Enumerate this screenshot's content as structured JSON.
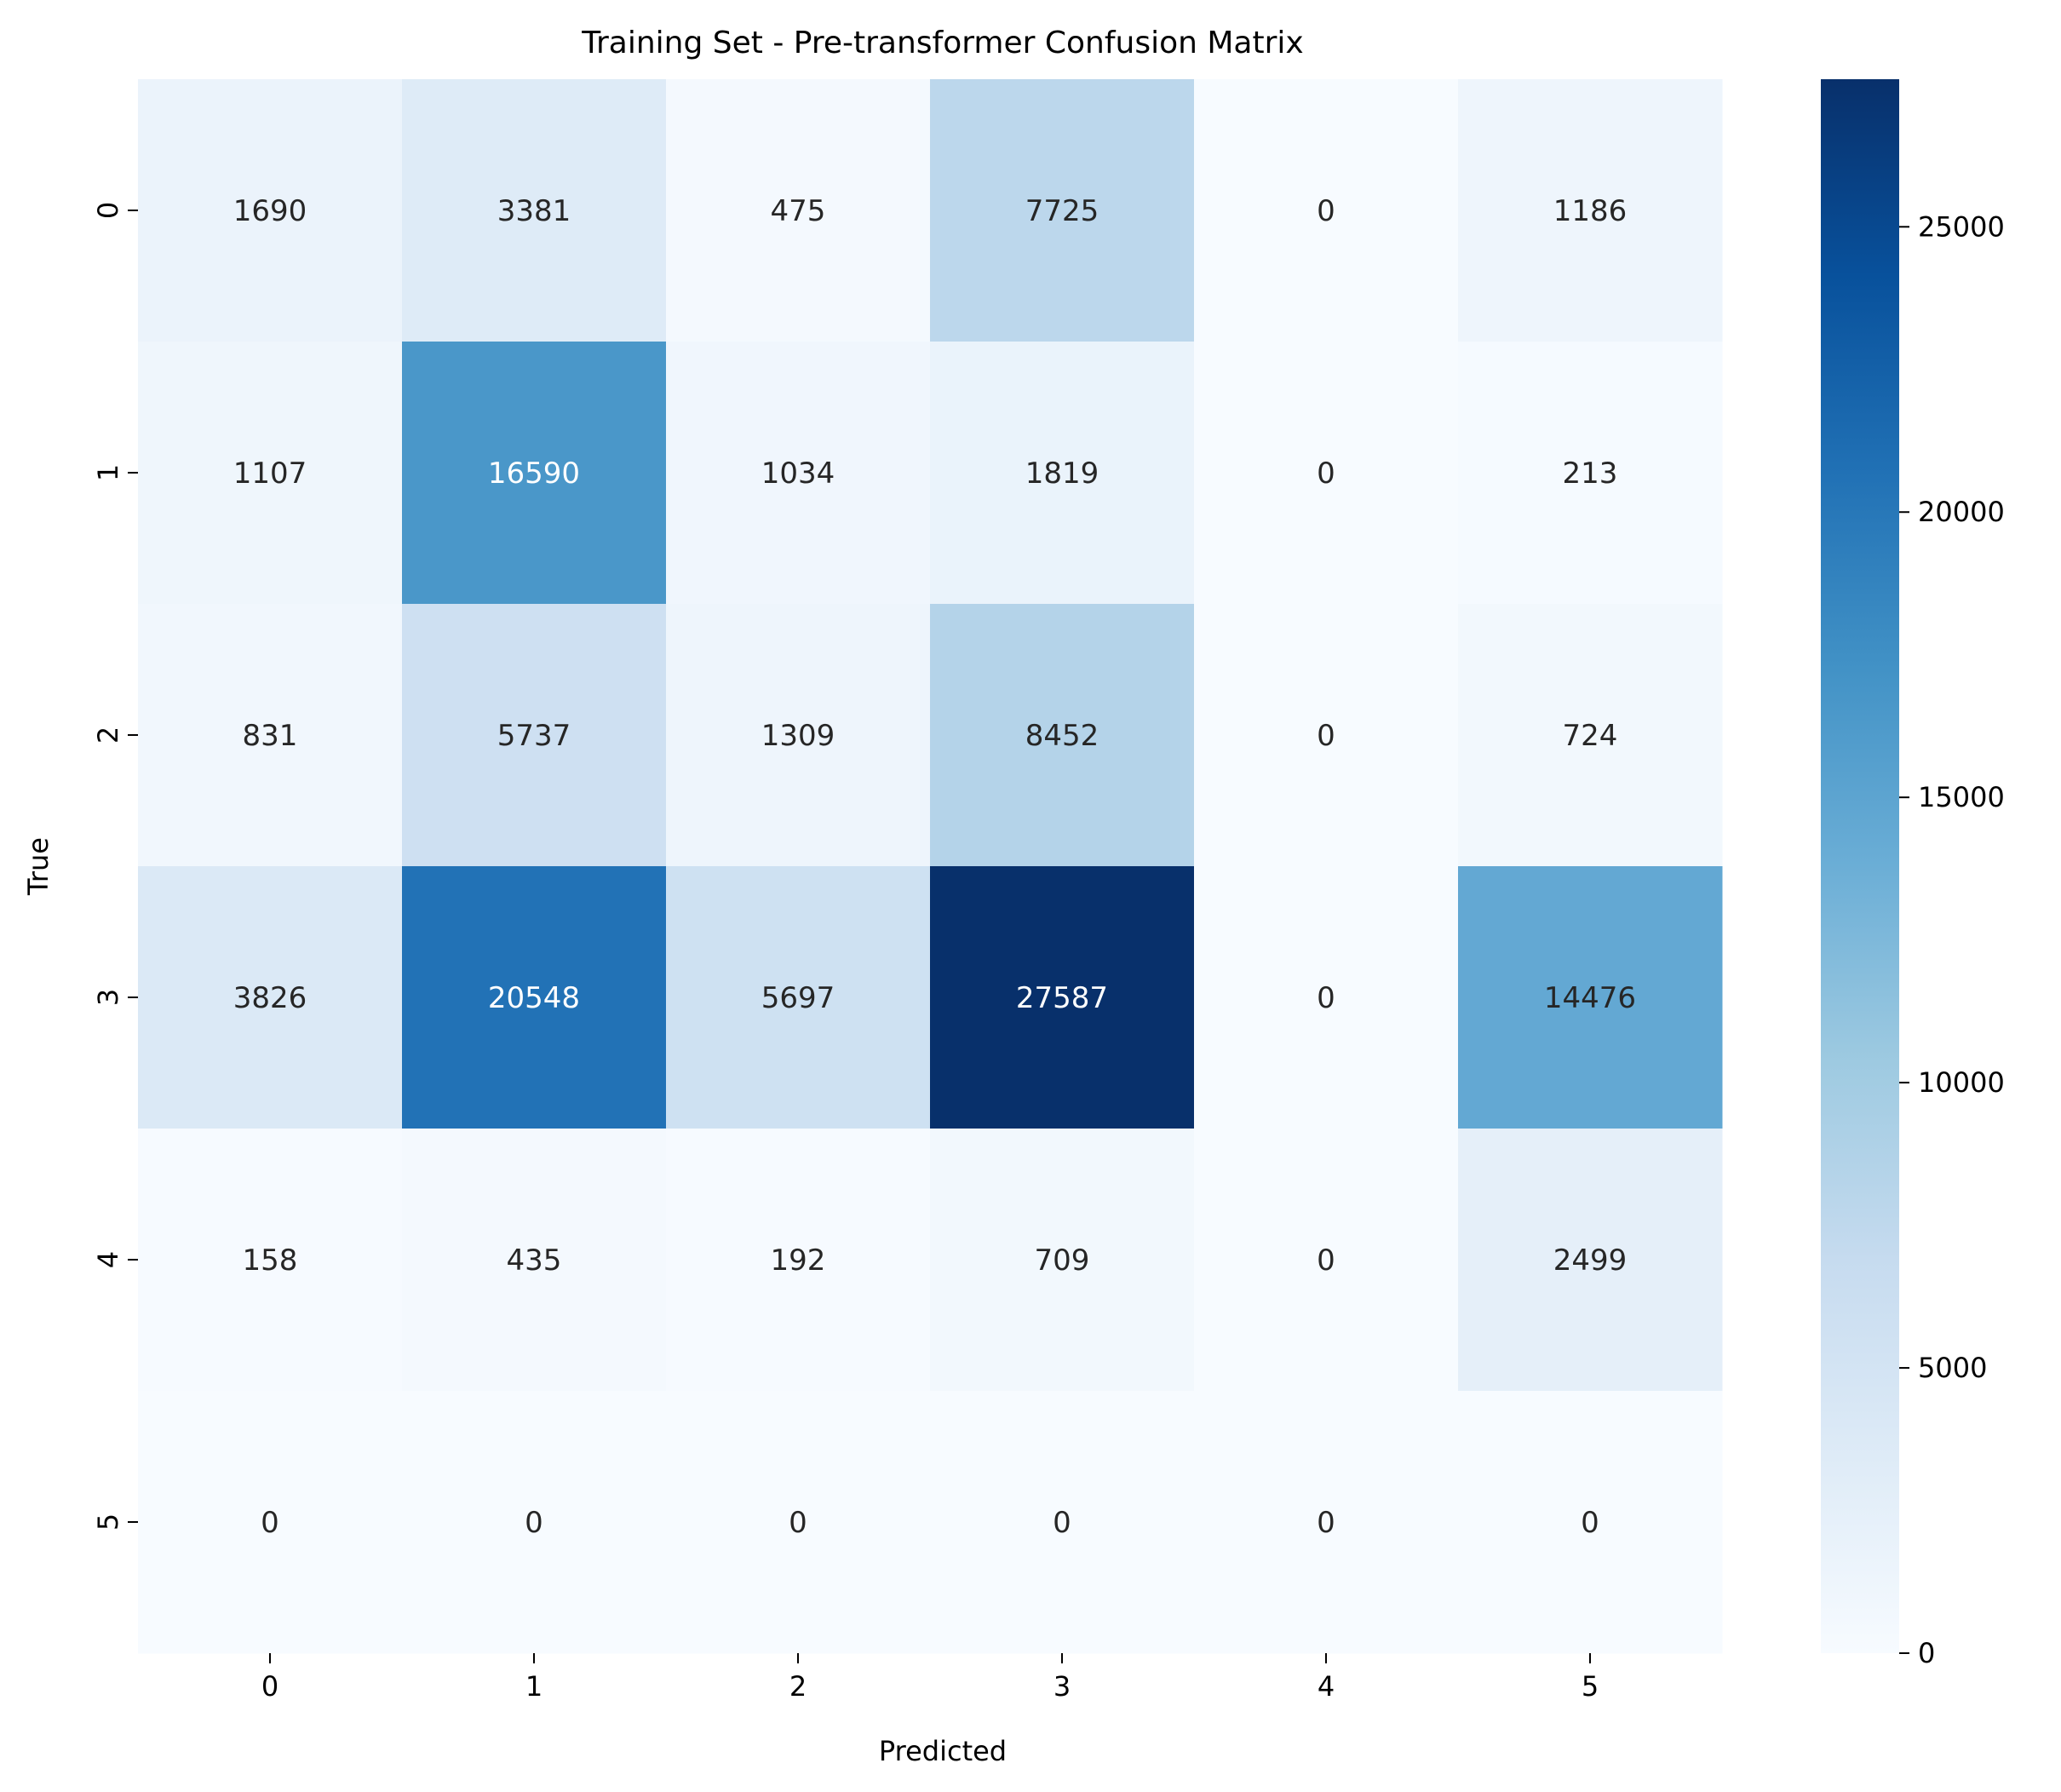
{
  "chart_data": {
    "type": "heatmap",
    "title": "Training Set - Pre-transformer Confusion Matrix",
    "xlabel": "Predicted",
    "ylabel": "True",
    "x_categories": [
      "0",
      "1",
      "2",
      "3",
      "4",
      "5"
    ],
    "y_categories": [
      "0",
      "1",
      "2",
      "3",
      "4",
      "5"
    ],
    "values": [
      [
        1690,
        3381,
        475,
        7725,
        0,
        1186
      ],
      [
        1107,
        16590,
        1034,
        1819,
        0,
        213
      ],
      [
        831,
        5737,
        1309,
        8452,
        0,
        724
      ],
      [
        3826,
        20548,
        5697,
        27587,
        0,
        14476
      ],
      [
        158,
        435,
        192,
        709,
        0,
        2499
      ],
      [
        0,
        0,
        0,
        0,
        0,
        0
      ]
    ],
    "colormap": "Blues",
    "colorbar": {
      "min": 0,
      "max": 27587,
      "ticks": [
        0,
        5000,
        10000,
        15000,
        20000,
        25000
      ],
      "tick_labels": [
        "0",
        "5000",
        "10000",
        "15000",
        "20000",
        "25000"
      ]
    },
    "colors": {
      "low": "#f7fbff",
      "high": "#08306b",
      "text_dark": "#262626",
      "text_light": "#ffffff"
    }
  }
}
